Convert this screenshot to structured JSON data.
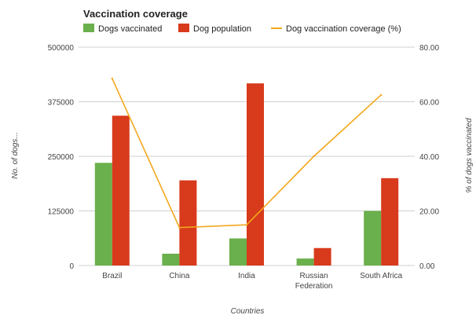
{
  "chart_data": {
    "type": "bar",
    "title": "Vaccination coverage",
    "categories": [
      "Brazil",
      "China",
      "India",
      "Russian Federation",
      "South Africa"
    ],
    "category_lines": [
      [
        "Brazil"
      ],
      [
        "China"
      ],
      [
        "India"
      ],
      [
        "Russian",
        "Federation"
      ],
      [
        "South Africa"
      ]
    ],
    "series": [
      {
        "name": "Dogs vaccinated",
        "type": "bar",
        "axis": "left",
        "color": "#6ab04c",
        "values": [
          235000,
          27000,
          62000,
          16000,
          125000
        ]
      },
      {
        "name": "Dog population",
        "type": "bar",
        "axis": "left",
        "color": "#d83a1c",
        "values": [
          343000,
          195000,
          417000,
          40000,
          200000
        ]
      },
      {
        "name": "Dog vaccination coverage (%)",
        "type": "line",
        "axis": "right",
        "color": "#f2a81d",
        "values": [
          68.5,
          13.9,
          14.9,
          40.0,
          62.5
        ]
      }
    ],
    "xlabel": "Countries",
    "ylabel_left": "No. of dogs...",
    "ylabel_right": "% of dogs vaccinated",
    "ylim_left": [
      0,
      500000
    ],
    "ylim_right": [
      0,
      80
    ],
    "yticks_left": [
      "0",
      "125000",
      "250000",
      "375000",
      "500000"
    ],
    "yticks_right": [
      "0.00",
      "20.00",
      "40.00",
      "60.00",
      "80.00"
    ],
    "grid": true,
    "legend_position": "top"
  }
}
